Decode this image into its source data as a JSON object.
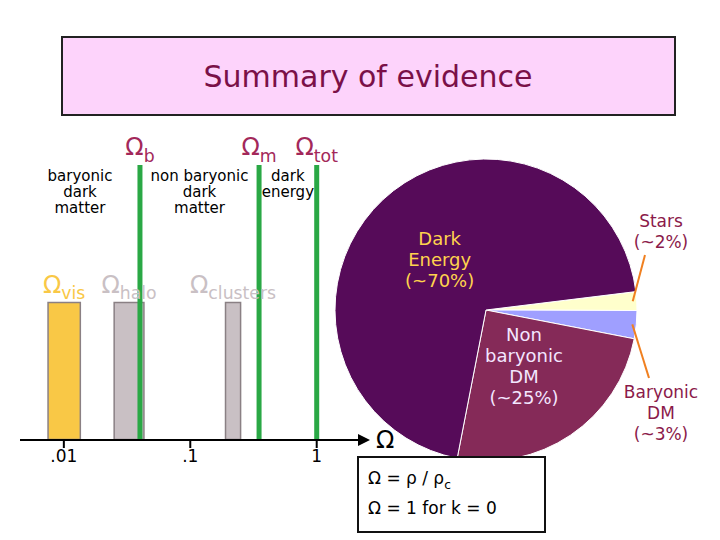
{
  "title": "Summary of evidence",
  "chart_data": [
    {
      "type": "bar",
      "orientation": "horizontal",
      "log": "x",
      "tick_labels": "x",
      "xlabel": "Ω",
      "xlim": [
        0.0045,
        2.2
      ],
      "xticks": [
        {
          "value": 0.01,
          "label": ".01"
        },
        {
          "value": 0.1,
          "label": ".1"
        },
        1
      ],
      "series": [
        {
          "name": "Ω",
          "subscript": "vis",
          "color": "#f9c846",
          "range": [
            0.0075,
            0.0135
          ]
        },
        {
          "name": "Ω",
          "subscript": "halo",
          "color": "#c9c0c4",
          "range": [
            0.025,
            0.043
          ]
        },
        {
          "name": "Ω",
          "subscript": "clusters",
          "color": "#c9c0c4",
          "range": [
            0.19,
            0.25
          ]
        }
      ],
      "reference_lines": [
        {
          "name": "Ω",
          "subscript": "b",
          "x": 0.04,
          "color": "#2aa845",
          "region": "baryonic\ndark\nmatter"
        },
        {
          "name": "Ω",
          "subscript": "m",
          "x": 0.35,
          "color": "#2aa845",
          "region": "non baryonic\ndark\nmatter"
        },
        {
          "name": "Ω",
          "subscript": "tot",
          "x": 1,
          "color": "#2aa845",
          "region": "dark\nenergy"
        }
      ]
    },
    {
      "type": "pie",
      "categories": [
        "Stars",
        "Baryonic DM",
        "Non baryonic DM",
        "Dark Energy"
      ],
      "values": [
        2,
        3,
        25,
        70
      ],
      "value_labels": [
        "(~2%)",
        "(~3%)",
        "(~25%)",
        "(~70%)"
      ],
      "colors": [
        "#ffffcc",
        "#9f9fff",
        "#852a58",
        "#560b59"
      ]
    }
  ],
  "formula_box": [
    {
      "text": "Ω = ρ / ρ",
      "subscript": "c"
    },
    {
      "text": "Ω = 1 for k = 0"
    }
  ]
}
